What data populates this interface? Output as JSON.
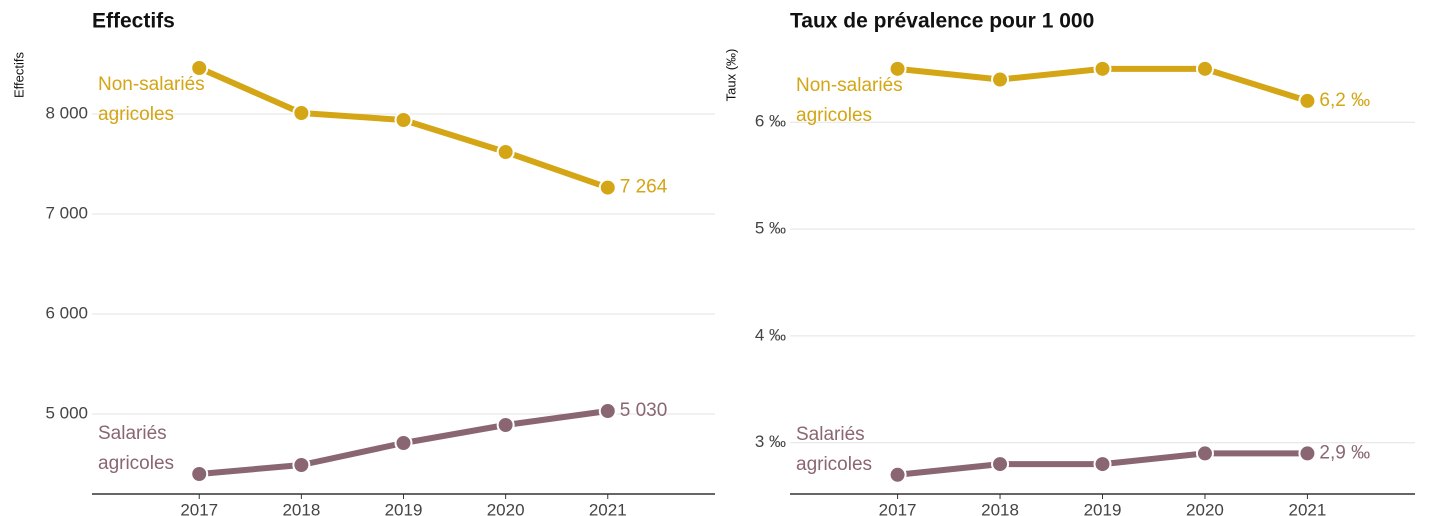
{
  "chart_data": [
    {
      "type": "line",
      "title": "Effectifs",
      "y_label": "Effectifs",
      "x": [
        2017,
        2018,
        2019,
        2020,
        2021
      ],
      "xlim": [
        2015.95,
        2022.05
      ],
      "xticks": [
        2017,
        2018,
        2019,
        2020,
        2021
      ],
      "ylim": [
        4200,
        8700
      ],
      "yticks": [
        {
          "value": 5000,
          "label": "5 000"
        },
        {
          "value": 6000,
          "label": "6 000"
        },
        {
          "value": 7000,
          "label": "7 000"
        },
        {
          "value": 8000,
          "label": "8 000"
        }
      ],
      "grid": true,
      "series": [
        {
          "name": "Non-salariés agricoles",
          "color": "#d4a514",
          "values": [
            8460,
            8010,
            7940,
            7620,
            7264
          ],
          "value_labels": [
            null,
            null,
            null,
            null,
            "7 264"
          ]
        },
        {
          "name": "Salariés agricoles",
          "color": "#8a6672",
          "values": [
            4400,
            4490,
            4710,
            4890,
            5030
          ],
          "value_labels": [
            null,
            null,
            null,
            null,
            "5 030"
          ]
        }
      ]
    },
    {
      "type": "line",
      "title": "Taux de prévalence pour 1 000",
      "y_label": "Taux (‰)",
      "x": [
        2017,
        2018,
        2019,
        2020,
        2021
      ],
      "xlim": [
        2015.95,
        2022.05
      ],
      "xticks": [
        2017,
        2018,
        2019,
        2020,
        2021
      ],
      "ylim": [
        2.52,
        6.77
      ],
      "yticks": [
        {
          "value": 3,
          "label": "3 ‰"
        },
        {
          "value": 4,
          "label": "4 ‰"
        },
        {
          "value": 5,
          "label": "5 ‰"
        },
        {
          "value": 6,
          "label": "6 ‰"
        }
      ],
      "grid": true,
      "series": [
        {
          "name": "Non-salariés agricoles",
          "color": "#d4a514",
          "values": [
            6.5,
            6.4,
            6.5,
            6.5,
            6.2
          ],
          "value_labels": [
            null,
            null,
            null,
            null,
            "6,2 ‰"
          ]
        },
        {
          "name": "Salariés agricoles",
          "color": "#8a6672",
          "values": [
            2.7,
            2.8,
            2.8,
            2.9,
            2.9
          ],
          "value_labels": [
            null,
            null,
            null,
            null,
            "2,9 ‰"
          ]
        }
      ]
    }
  ]
}
